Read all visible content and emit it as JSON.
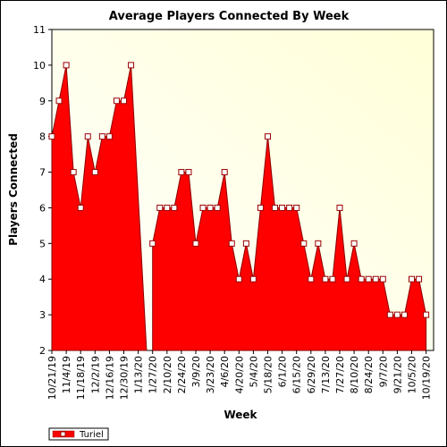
{
  "chart_data": {
    "type": "area",
    "title": "Average Players Connected By Week",
    "xlabel": "Week",
    "ylabel": "Players Connected",
    "ylim": [
      2,
      11
    ],
    "yticks": [
      2,
      3,
      4,
      5,
      6,
      7,
      8,
      9,
      10,
      11
    ],
    "grid": false,
    "legend_position": "bottom-left",
    "x_tick_labels": [
      "10/21/19",
      "11/4/19",
      "11/18/19",
      "12/2/19",
      "12/16/19",
      "12/30/19",
      "1/13/20",
      "1/27/20",
      "2/10/20",
      "2/24/20",
      "3/9/20",
      "3/23/20",
      "4/6/20",
      "4/20/20",
      "5/4/20",
      "5/18/20",
      "6/1/20",
      "6/15/20",
      "6/29/20",
      "7/13/20",
      "7/27/20",
      "8/10/20",
      "8/24/20",
      "9/7/20",
      "9/21/20",
      "10/5/20",
      "10/19/20"
    ],
    "series": [
      {
        "name": "Turiel",
        "color": "#ff0000",
        "x": [
          "10/21/19",
          "10/28/19",
          "11/4/19",
          "11/11/19",
          "11/18/19",
          "11/25/19",
          "12/2/19",
          "12/9/19",
          "12/16/19",
          "12/23/19",
          "12/30/19",
          "1/6/20",
          "1/13/20",
          "1/20/20",
          "1/27/20",
          "2/3/20",
          "2/10/20",
          "2/17/20",
          "2/24/20",
          "3/2/20",
          "3/9/20",
          "3/16/20",
          "3/23/20",
          "3/30/20",
          "4/6/20",
          "4/13/20",
          "4/20/20",
          "4/27/20",
          "5/4/20",
          "5/11/20",
          "5/18/20",
          "5/25/20",
          "6/1/20",
          "6/8/20",
          "6/15/20",
          "6/22/20",
          "6/29/20",
          "7/6/20",
          "7/13/20",
          "7/20/20",
          "7/27/20",
          "8/3/20",
          "8/10/20",
          "8/17/20",
          "8/24/20",
          "8/31/20",
          "9/7/20",
          "9/14/20",
          "9/21/20",
          "9/28/20",
          "10/5/20",
          "10/12/20",
          "10/19/20"
        ],
        "values": [
          8,
          9,
          10,
          7,
          6,
          8,
          7,
          8,
          8,
          9,
          9,
          10,
          null,
          null,
          5,
          6,
          6,
          6,
          7,
          7,
          5,
          6,
          6,
          6,
          7,
          5,
          4,
          5,
          4,
          6,
          8,
          6,
          6,
          6,
          6,
          5,
          4,
          5,
          4,
          4,
          6,
          4,
          5,
          4,
          4,
          4,
          4,
          3,
          3,
          3,
          4,
          4,
          3
        ],
        "markers": [
          true,
          true,
          true,
          true,
          true,
          true,
          true,
          true,
          true,
          true,
          true,
          true,
          false,
          false,
          true,
          true,
          true,
          true,
          true,
          true,
          true,
          true,
          true,
          true,
          true,
          true,
          true,
          true,
          true,
          true,
          true,
          true,
          true,
          true,
          true,
          true,
          true,
          true,
          true,
          true,
          true,
          true,
          true,
          true,
          true,
          true,
          true,
          true,
          true,
          true,
          true,
          true,
          true
        ]
      }
    ]
  },
  "colors": {
    "plot_bg_top": "#ffffd8",
    "plot_bg_bottom": "#ffffff",
    "fill": "#ff0000",
    "outline": "#8b0000",
    "marker_fill": "#ffffff",
    "marker_stroke": "#990000"
  }
}
